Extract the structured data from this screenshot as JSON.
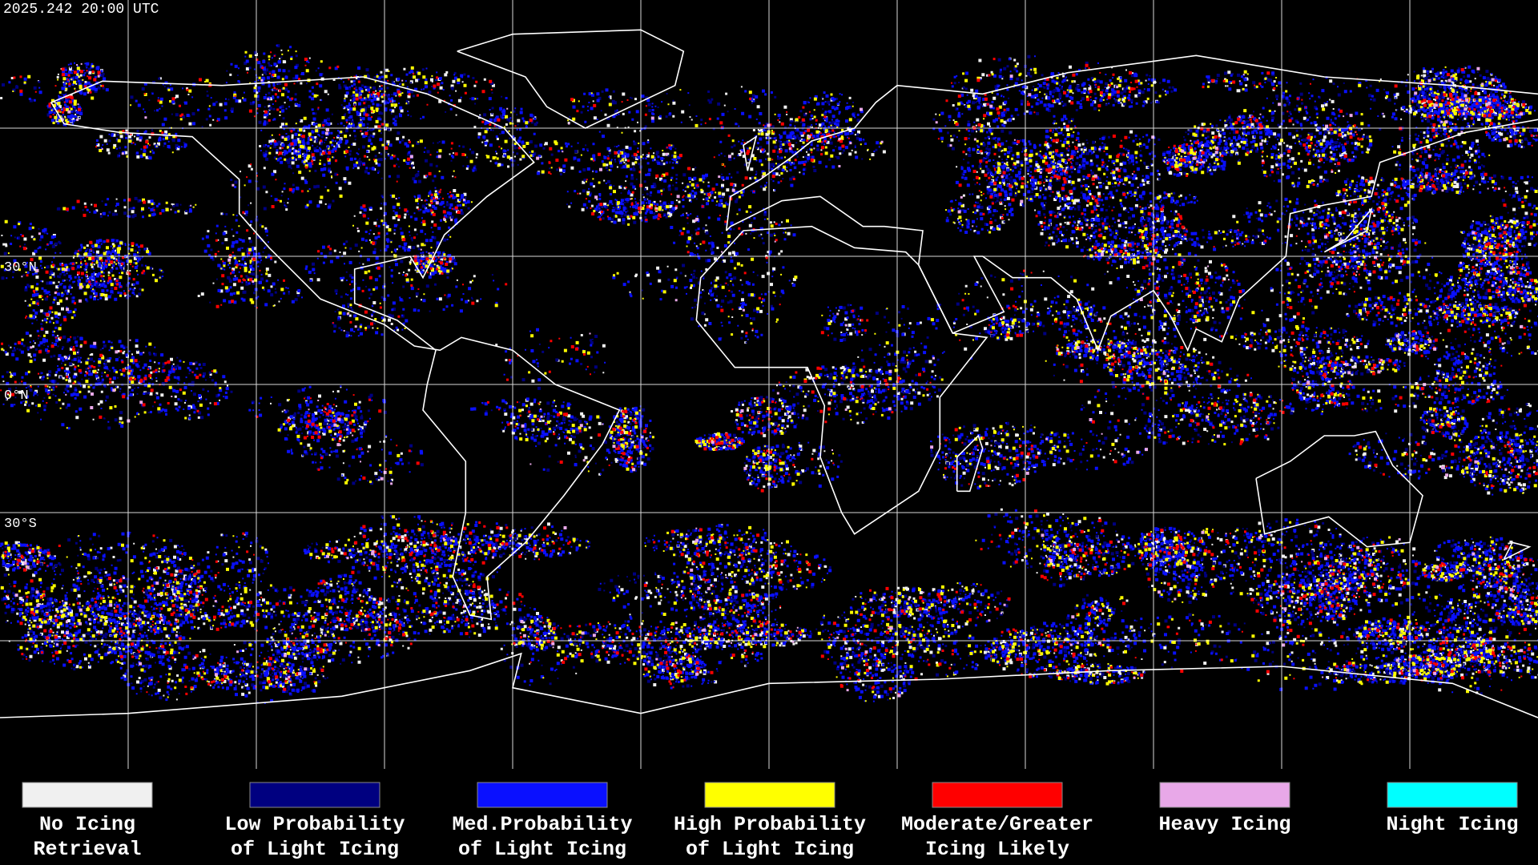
{
  "timestamp": "2025.242 20:00 UTC",
  "latitude_labels": [
    "30°N",
    "0°N",
    "30°S"
  ],
  "legend": [
    {
      "lines": [
        "No Icing",
        "Retrieval"
      ],
      "color": "#f0f0f0"
    },
    {
      "lines": [
        "Low Probability",
        "of Light Icing"
      ],
      "color": "#000080"
    },
    {
      "lines": [
        "Med.Probability",
        "of Light Icing"
      ],
      "color": "#0a10ff"
    },
    {
      "lines": [
        "High Probability",
        "of Light Icing"
      ],
      "color": "#ffff00"
    },
    {
      "lines": [
        "Moderate/Greater",
        "Icing Likely"
      ],
      "color": "#ff0000"
    },
    {
      "lines": [
        "Heavy Icing"
      ],
      "color": "#e8a8e8"
    },
    {
      "lines": [
        "Night Icing"
      ],
      "color": "#00ffff"
    }
  ]
}
